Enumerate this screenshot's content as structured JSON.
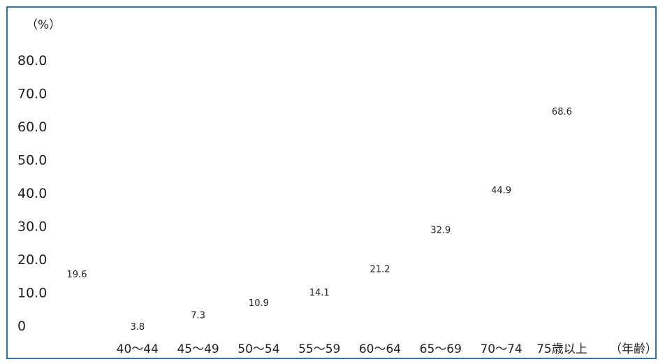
{
  "chart_data": {
    "type": "line",
    "categories": [
      "",
      "40～44",
      "45～49",
      "50～54",
      "55～59",
      "60～64",
      "65～69",
      "70～74",
      "75歳以上"
    ],
    "values": [
      19.6,
      3.8,
      7.3,
      10.9,
      14.1,
      21.2,
      32.9,
      44.9,
      68.6
    ],
    "data_labels": [
      "19.6",
      "3.8",
      "7.3",
      "10.9",
      "14.1",
      "21.2",
      "32.9",
      "44.9",
      "68.6"
    ],
    "y_tick_labels": [
      "0",
      "10.0",
      "20.0",
      "30.0",
      "40.0",
      "50.0",
      "60.0",
      "70.0",
      "80.0"
    ],
    "y_ticks": [
      0,
      10,
      20,
      30,
      40,
      50,
      60,
      70,
      80
    ],
    "ylim": [
      0,
      80
    ],
    "y_unit": "（%）",
    "x_unit": "（年齢）",
    "markers": "none",
    "lines": "none",
    "grid": false,
    "border_color": "#2e75b6"
  }
}
